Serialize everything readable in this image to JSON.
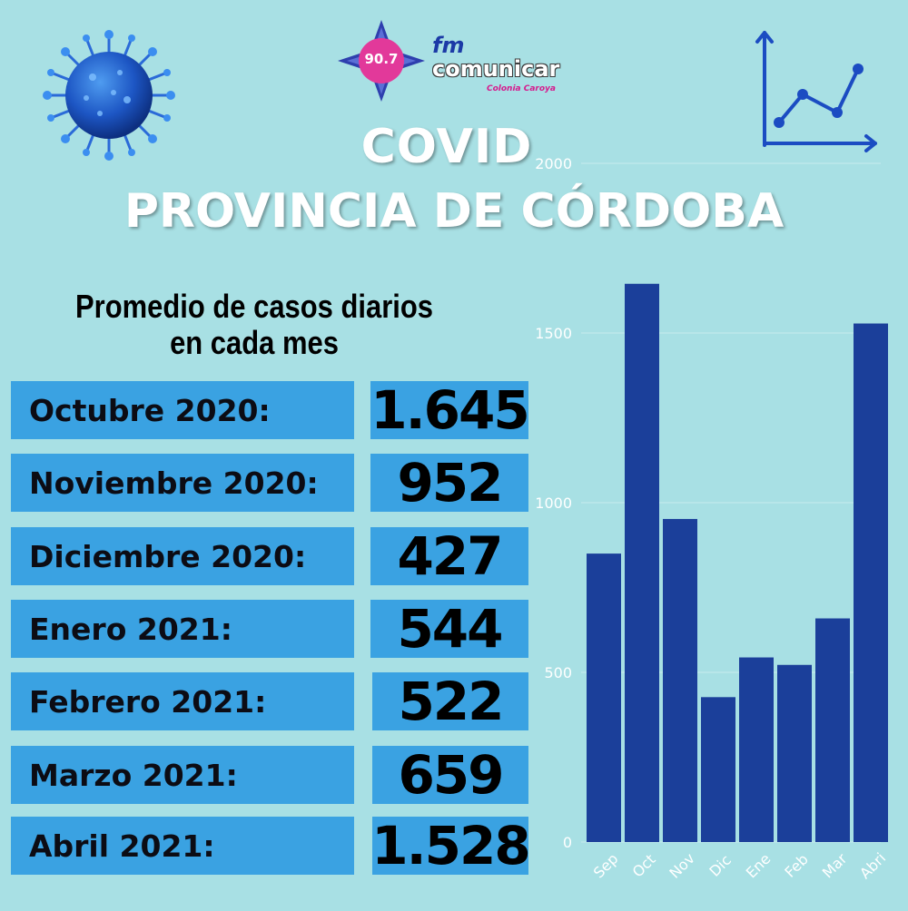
{
  "logo": {
    "frequency": "90.7",
    "fm": "fm",
    "name": "comunicar",
    "location": "Colonia Caroya"
  },
  "title_line1": "COVID",
  "title_line2": "PROVINCIA DE CÓRDOBA",
  "subtitle_line1": "Promedio de casos diarios",
  "subtitle_line2": "en cada mes",
  "table": [
    {
      "label": "Octubre 2020:",
      "value": "1.645"
    },
    {
      "label": "Noviembre 2020:",
      "value": "952"
    },
    {
      "label": "Diciembre 2020:",
      "value": "427"
    },
    {
      "label": "Enero 2021:",
      "value": "544"
    },
    {
      "label": "Febrero 2021:",
      "value": "522"
    },
    {
      "label": "Marzo 2021:",
      "value": "659"
    },
    {
      "label": "Abril 2021:",
      "value": "1.528"
    }
  ],
  "icons": [
    "virus-icon",
    "line-chart-icon"
  ],
  "colors": {
    "background": "#a8e0e4",
    "cell": "#3aa2e2",
    "bar": "#1b3f9a",
    "title": "#ffffff"
  },
  "chart_data": {
    "type": "bar",
    "categories": [
      "Sep",
      "Oct",
      "Nov",
      "Dic",
      "Ene",
      "Feb",
      "Mar",
      "Abri"
    ],
    "values": [
      850,
      1645,
      952,
      427,
      544,
      522,
      659,
      1528
    ],
    "ylim": [
      0,
      2000
    ],
    "yticks": [
      0,
      500,
      1000,
      1500,
      2000
    ],
    "grid": true,
    "title": "",
    "xlabel": "",
    "ylabel": ""
  }
}
